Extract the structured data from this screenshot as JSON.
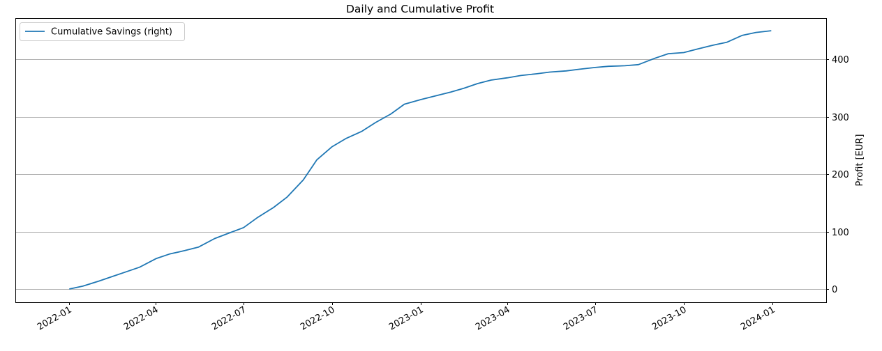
{
  "chart_data": {
    "type": "line",
    "title": "Daily and Cumulative Profit",
    "xlabel": "",
    "ylabel": "Profit [EUR]",
    "ylabel_side": "right",
    "xlim": [
      "2021-11-06",
      "2024-02-26"
    ],
    "ylim": [
      -23,
      472
    ],
    "grid": "y",
    "legend_position": "top-left",
    "x_ticks": [
      "2022-01",
      "2022-04",
      "2022-07",
      "2022-10",
      "2023-01",
      "2023-04",
      "2023-07",
      "2023-10",
      "2024-01"
    ],
    "y_ticks": [
      0,
      100,
      200,
      300,
      400
    ],
    "series": [
      {
        "name": "Cumulative Savings (right)",
        "color": "#1f77b4",
        "points": [
          [
            "2022-01-01",
            0
          ],
          [
            "2022-01-15",
            5
          ],
          [
            "2022-02-01",
            14
          ],
          [
            "2022-02-15",
            22
          ],
          [
            "2022-03-01",
            30
          ],
          [
            "2022-03-15",
            38
          ],
          [
            "2022-04-01",
            53
          ],
          [
            "2022-04-15",
            61
          ],
          [
            "2022-05-01",
            67
          ],
          [
            "2022-05-15",
            73
          ],
          [
            "2022-06-01",
            88
          ],
          [
            "2022-06-15",
            97
          ],
          [
            "2022-07-01",
            107
          ],
          [
            "2022-07-15",
            124
          ],
          [
            "2022-08-01",
            142
          ],
          [
            "2022-08-15",
            160
          ],
          [
            "2022-09-01",
            190
          ],
          [
            "2022-09-15",
            225
          ],
          [
            "2022-10-01",
            248
          ],
          [
            "2022-10-15",
            262
          ],
          [
            "2022-11-01",
            275
          ],
          [
            "2022-11-15",
            290
          ],
          [
            "2022-12-01",
            305
          ],
          [
            "2022-12-15",
            322
          ],
          [
            "2023-01-01",
            330
          ],
          [
            "2023-01-15",
            336
          ],
          [
            "2023-02-01",
            343
          ],
          [
            "2023-02-15",
            350
          ],
          [
            "2023-03-01",
            358
          ],
          [
            "2023-03-15",
            364
          ],
          [
            "2023-04-01",
            368
          ],
          [
            "2023-04-15",
            372
          ],
          [
            "2023-05-01",
            375
          ],
          [
            "2023-05-15",
            378
          ],
          [
            "2023-06-01",
            380
          ],
          [
            "2023-06-15",
            383
          ],
          [
            "2023-07-01",
            386
          ],
          [
            "2023-07-15",
            388
          ],
          [
            "2023-08-01",
            389
          ],
          [
            "2023-08-15",
            391
          ],
          [
            "2023-09-01",
            402
          ],
          [
            "2023-09-15",
            410
          ],
          [
            "2023-10-01",
            412
          ],
          [
            "2023-10-15",
            418
          ],
          [
            "2023-11-01",
            425
          ],
          [
            "2023-11-15",
            430
          ],
          [
            "2023-12-01",
            442
          ],
          [
            "2023-12-15",
            447
          ],
          [
            "2023-12-31",
            450
          ]
        ]
      }
    ]
  }
}
